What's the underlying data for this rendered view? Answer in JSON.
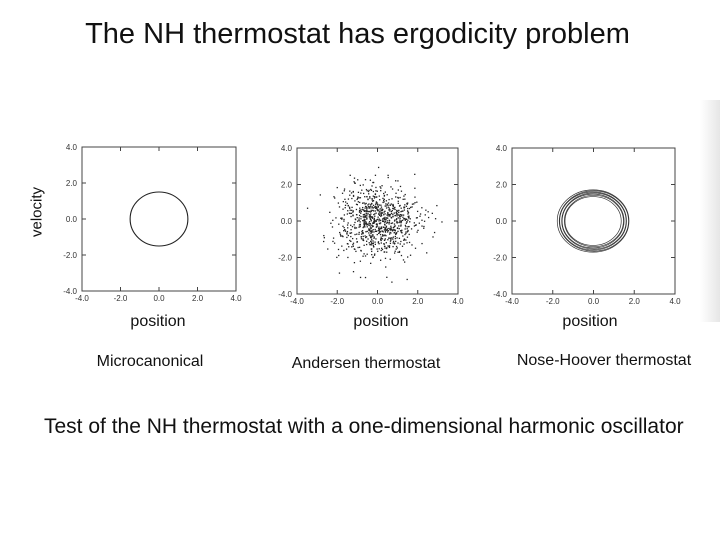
{
  "title": "The NH thermostat has ergodicity problem",
  "ylabel": "velocity",
  "caption": "Test of the NH thermostat with a one-dimensional harmonic oscillator",
  "chart_data": [
    {
      "type": "scatter",
      "name": "Microcanonical",
      "xlabel": "position",
      "ylabel": "velocity",
      "xlim": [
        -4.0,
        4.0
      ],
      "ylim": [
        -4.0,
        4.0
      ],
      "xticks": [
        "-4.0",
        "-2.0",
        "0.0",
        "2.0",
        "4.0"
      ],
      "yticks": [
        "4.0",
        "2.0",
        "0.0",
        "-2.0",
        "-4.0"
      ],
      "shape": "closed orbit, circle of radius ~1.5 centered at origin"
    },
    {
      "type": "scatter",
      "name": "Andersen thermostat",
      "xlabel": "position",
      "ylabel": "velocity",
      "xlim": [
        -4.0,
        4.0
      ],
      "ylim": [
        -4.0,
        4.0
      ],
      "xticks": [
        "-4.0",
        "-2.0",
        "0.0",
        "2.0",
        "4.0"
      ],
      "yticks": [
        "4.0",
        "2.0",
        "0.0",
        "-2.0",
        "-4.0"
      ],
      "shape": "cloud of points, gaussian-like spread (sigma ~1) centered at origin"
    },
    {
      "type": "scatter",
      "name": "Nose-Hoover thermostat",
      "xlabel": "position",
      "ylabel": "velocity",
      "xlim": [
        -4.0,
        4.0
      ],
      "ylim": [
        -4.0,
        4.0
      ],
      "xticks": [
        "-4.0",
        "-2.0",
        "0.0",
        "2.0",
        "4.0"
      ],
      "yticks": [
        "4.0",
        "2.0",
        "0.0",
        "-2.0",
        "-4.0"
      ],
      "shape": "thin ring of overlapping orbits, radius ~1.4 to ~1.75"
    }
  ]
}
